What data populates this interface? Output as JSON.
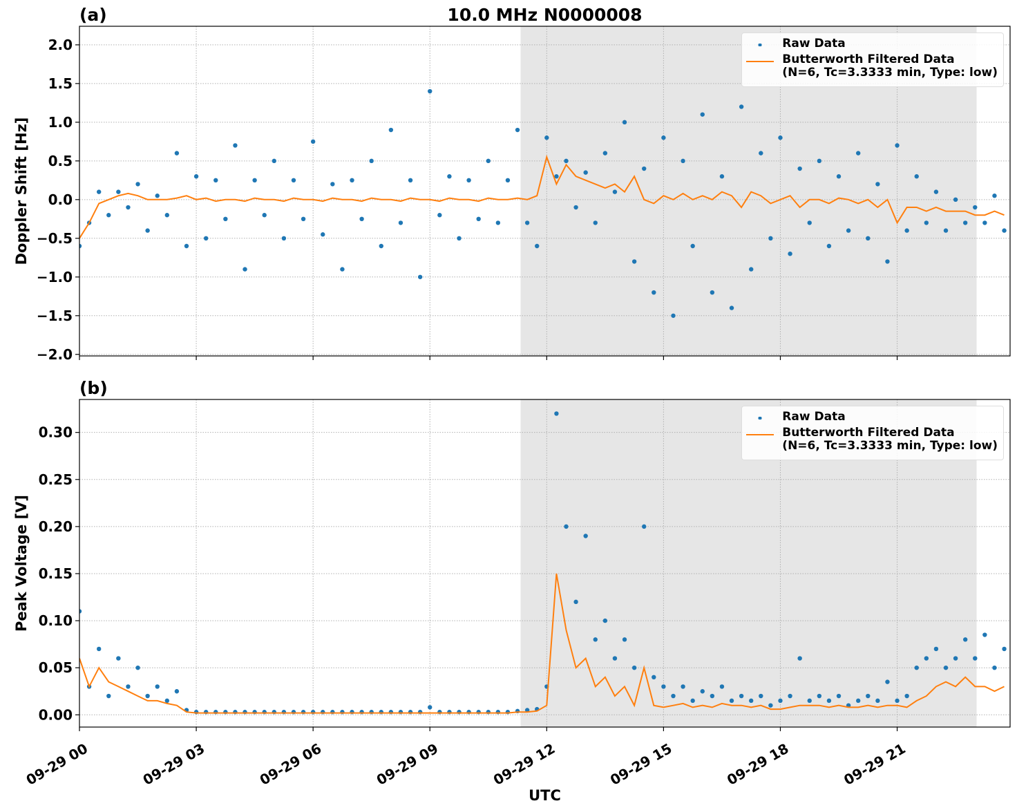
{
  "chart_data": [
    {
      "type": "line",
      "title": "10.0 MHz N0000008",
      "panel_label": "(a)",
      "ylabel": "Doppler Shift [Hz]",
      "xlim": [
        0,
        23.9
      ],
      "ylim": [
        -2.02,
        2.24
      ],
      "shaded_span": [
        11.33,
        23.04
      ],
      "grid": true,
      "legend": "upper right",
      "xticks": [
        {
          "value": 0,
          "label": "09-29 00"
        },
        {
          "value": 3,
          "label": "09-29 03"
        },
        {
          "value": 6,
          "label": "09-29 06"
        },
        {
          "value": 9,
          "label": "09-29 09"
        },
        {
          "value": 12,
          "label": "09-29 12"
        },
        {
          "value": 15,
          "label": "09-29 15"
        },
        {
          "value": 18,
          "label": "09-29 18"
        },
        {
          "value": 21,
          "label": "09-29 21"
        }
      ],
      "yticks": [
        {
          "value": -2,
          "label": "−2.0"
        },
        {
          "value": -1.5,
          "label": "−1.5"
        },
        {
          "value": -1,
          "label": "−1.0"
        },
        {
          "value": -0.5,
          "label": "−0.5"
        },
        {
          "value": 0,
          "label": "0.0"
        },
        {
          "value": 0.5,
          "label": "0.5"
        },
        {
          "value": 1,
          "label": "1.0"
        },
        {
          "value": 1.5,
          "label": "1.5"
        },
        {
          "value": 2,
          "label": "2.0"
        }
      ],
      "x": [
        0,
        0.25,
        0.5,
        0.75,
        1,
        1.25,
        1.5,
        1.75,
        2,
        2.25,
        2.5,
        2.75,
        3,
        3.25,
        3.5,
        3.75,
        4,
        4.25,
        4.5,
        4.75,
        5,
        5.25,
        5.5,
        5.75,
        6,
        6.25,
        6.5,
        6.75,
        7,
        7.25,
        7.5,
        7.75,
        8,
        8.25,
        8.5,
        8.75,
        9,
        9.25,
        9.5,
        9.75,
        10,
        10.25,
        10.5,
        10.75,
        11,
        11.25,
        11.5,
        11.75,
        12,
        12.25,
        12.5,
        12.75,
        13,
        13.25,
        13.5,
        13.75,
        14,
        14.25,
        14.5,
        14.75,
        15,
        15.25,
        15.5,
        15.75,
        16,
        16.25,
        16.5,
        16.75,
        17,
        17.25,
        17.5,
        17.75,
        18,
        18.25,
        18.5,
        18.75,
        19,
        19.25,
        19.5,
        19.75,
        20,
        20.25,
        20.5,
        20.75,
        21,
        21.25,
        21.5,
        21.75,
        22,
        22.25,
        22.5,
        22.75,
        23,
        23.25,
        23.5,
        23.75
      ],
      "series": [
        {
          "name": "Raw Data",
          "kind": "scatter",
          "color": "#1f77b4",
          "values": [
            -0.6,
            -0.3,
            0.1,
            -0.2,
            0.1,
            -0.1,
            0.2,
            -0.4,
            0.05,
            -0.2,
            0.6,
            -0.6,
            0.3,
            -0.5,
            0.25,
            -0.25,
            0.7,
            -0.9,
            0.25,
            -0.2,
            0.5,
            -0.5,
            0.25,
            -0.25,
            0.75,
            -0.45,
            0.2,
            -0.9,
            0.25,
            -0.25,
            0.5,
            -0.6,
            0.9,
            -0.3,
            0.25,
            -1.0,
            1.4,
            -0.2,
            0.3,
            -0.5,
            0.25,
            -0.25,
            0.5,
            -0.3,
            0.25,
            0.9,
            -0.3,
            -0.6,
            0.8,
            0.3,
            0.5,
            -0.1,
            0.35,
            -0.3,
            0.6,
            0.1,
            1.0,
            -0.8,
            0.4,
            -1.2,
            0.8,
            -1.5,
            0.5,
            -0.6,
            1.1,
            -1.2,
            0.3,
            -1.4,
            1.2,
            -0.9,
            0.6,
            -0.5,
            0.8,
            -0.7,
            0.4,
            -0.3,
            0.5,
            -0.6,
            0.3,
            -0.4,
            0.6,
            -0.5,
            0.2,
            -0.8,
            0.7,
            -0.4,
            0.3,
            -0.3,
            0.1,
            -0.4,
            0.0,
            -0.3,
            -0.1,
            -0.3,
            0.05,
            -0.4
          ]
        },
        {
          "name": "Butterworth Filtered Data\n(N=6, Tc=3.3333 min, Type: low)",
          "kind": "line",
          "color": "#ff7f0e",
          "values": [
            -0.5,
            -0.3,
            -0.05,
            0.0,
            0.05,
            0.08,
            0.05,
            0.0,
            0.0,
            0.0,
            0.02,
            0.05,
            0.0,
            0.02,
            -0.02,
            0.0,
            0.0,
            -0.02,
            0.02,
            0.0,
            0.0,
            -0.02,
            0.02,
            0.0,
            0.0,
            -0.02,
            0.02,
            0.0,
            0.0,
            -0.02,
            0.02,
            0.0,
            0.0,
            -0.02,
            0.02,
            0.0,
            0.0,
            -0.02,
            0.02,
            0.0,
            0.0,
            -0.02,
            0.02,
            0.0,
            0.0,
            0.02,
            0.0,
            0.05,
            0.55,
            0.2,
            0.45,
            0.3,
            0.25,
            0.2,
            0.15,
            0.2,
            0.1,
            0.3,
            0.0,
            -0.05,
            0.05,
            0.0,
            0.08,
            0.0,
            0.05,
            0.0,
            0.1,
            0.05,
            -0.1,
            0.1,
            0.05,
            -0.05,
            0.0,
            0.05,
            -0.1,
            0.0,
            0.0,
            -0.05,
            0.02,
            0.0,
            -0.05,
            0.0,
            -0.1,
            0.0,
            -0.3,
            -0.1,
            -0.1,
            -0.15,
            -0.1,
            -0.15,
            -0.15,
            -0.15,
            -0.2,
            -0.2,
            -0.15,
            -0.2
          ]
        }
      ]
    },
    {
      "type": "line",
      "panel_label": "(b)",
      "ylabel": "Peak Voltage [V]",
      "xlabel": "UTC",
      "xlim": [
        0,
        23.9
      ],
      "ylim": [
        -0.013,
        0.335
      ],
      "shaded_span": [
        11.33,
        23.04
      ],
      "grid": true,
      "legend": "upper right",
      "xticks": [
        {
          "value": 0,
          "label": "09-29 00"
        },
        {
          "value": 3,
          "label": "09-29 03"
        },
        {
          "value": 6,
          "label": "09-29 06"
        },
        {
          "value": 9,
          "label": "09-29 09"
        },
        {
          "value": 12,
          "label": "09-29 12"
        },
        {
          "value": 15,
          "label": "09-29 15"
        },
        {
          "value": 18,
          "label": "09-29 18"
        },
        {
          "value": 21,
          "label": "09-29 21"
        }
      ],
      "yticks": [
        {
          "value": 0,
          "label": "0.00"
        },
        {
          "value": 0.05,
          "label": "0.05"
        },
        {
          "value": 0.1,
          "label": "0.10"
        },
        {
          "value": 0.15,
          "label": "0.15"
        },
        {
          "value": 0.2,
          "label": "0.20"
        },
        {
          "value": 0.25,
          "label": "0.25"
        },
        {
          "value": 0.3,
          "label": "0.30"
        }
      ],
      "x": [
        0,
        0.25,
        0.5,
        0.75,
        1,
        1.25,
        1.5,
        1.75,
        2,
        2.25,
        2.5,
        2.75,
        3,
        3.25,
        3.5,
        3.75,
        4,
        4.25,
        4.5,
        4.75,
        5,
        5.25,
        5.5,
        5.75,
        6,
        6.25,
        6.5,
        6.75,
        7,
        7.25,
        7.5,
        7.75,
        8,
        8.25,
        8.5,
        8.75,
        9,
        9.25,
        9.5,
        9.75,
        10,
        10.25,
        10.5,
        10.75,
        11,
        11.25,
        11.5,
        11.75,
        12,
        12.25,
        12.5,
        12.75,
        13,
        13.25,
        13.5,
        13.75,
        14,
        14.25,
        14.5,
        14.75,
        15,
        15.25,
        15.5,
        15.75,
        16,
        16.25,
        16.5,
        16.75,
        17,
        17.25,
        17.5,
        17.75,
        18,
        18.25,
        18.5,
        18.75,
        19,
        19.25,
        19.5,
        19.75,
        20,
        20.25,
        20.5,
        20.75,
        21,
        21.25,
        21.5,
        21.75,
        22,
        22.25,
        22.5,
        22.75,
        23,
        23.25,
        23.5,
        23.75
      ],
      "series": [
        {
          "name": "Raw Data",
          "kind": "scatter",
          "color": "#1f77b4",
          "values": [
            0.11,
            0.03,
            0.07,
            0.02,
            0.06,
            0.03,
            0.05,
            0.02,
            0.03,
            0.015,
            0.025,
            0.005,
            0.003,
            0.003,
            0.003,
            0.003,
            0.003,
            0.003,
            0.003,
            0.003,
            0.003,
            0.003,
            0.003,
            0.003,
            0.003,
            0.003,
            0.003,
            0.003,
            0.003,
            0.003,
            0.003,
            0.003,
            0.003,
            0.003,
            0.003,
            0.003,
            0.008,
            0.003,
            0.003,
            0.003,
            0.003,
            0.003,
            0.003,
            0.003,
            0.003,
            0.004,
            0.005,
            0.006,
            0.03,
            0.32,
            0.2,
            0.12,
            0.19,
            0.08,
            0.1,
            0.06,
            0.08,
            0.05,
            0.2,
            0.04,
            0.03,
            0.02,
            0.03,
            0.015,
            0.025,
            0.02,
            0.03,
            0.015,
            0.02,
            0.015,
            0.02,
            0.01,
            0.015,
            0.02,
            0.06,
            0.015,
            0.02,
            0.015,
            0.02,
            0.01,
            0.015,
            0.02,
            0.015,
            0.035,
            0.015,
            0.02,
            0.05,
            0.06,
            0.07,
            0.05,
            0.06,
            0.08,
            0.06,
            0.085,
            0.05,
            0.07
          ]
        },
        {
          "name": "Butterworth Filtered Data\n(N=6, Tc=3.3333 min, Type: low)",
          "kind": "line",
          "color": "#ff7f0e",
          "values": [
            0.06,
            0.03,
            0.05,
            0.035,
            0.03,
            0.025,
            0.02,
            0.015,
            0.015,
            0.012,
            0.01,
            0.003,
            0.002,
            0.002,
            0.002,
            0.002,
            0.002,
            0.002,
            0.002,
            0.002,
            0.002,
            0.002,
            0.002,
            0.002,
            0.002,
            0.002,
            0.002,
            0.002,
            0.002,
            0.002,
            0.002,
            0.002,
            0.002,
            0.002,
            0.002,
            0.002,
            0.002,
            0.002,
            0.002,
            0.002,
            0.002,
            0.002,
            0.002,
            0.002,
            0.002,
            0.003,
            0.003,
            0.004,
            0.01,
            0.15,
            0.09,
            0.05,
            0.06,
            0.03,
            0.04,
            0.02,
            0.03,
            0.01,
            0.05,
            0.01,
            0.008,
            0.01,
            0.012,
            0.008,
            0.01,
            0.008,
            0.012,
            0.01,
            0.01,
            0.008,
            0.01,
            0.006,
            0.006,
            0.008,
            0.01,
            0.01,
            0.01,
            0.008,
            0.01,
            0.008,
            0.008,
            0.01,
            0.008,
            0.01,
            0.01,
            0.008,
            0.015,
            0.02,
            0.03,
            0.035,
            0.03,
            0.04,
            0.03,
            0.03,
            0.025,
            0.03
          ]
        }
      ]
    }
  ]
}
